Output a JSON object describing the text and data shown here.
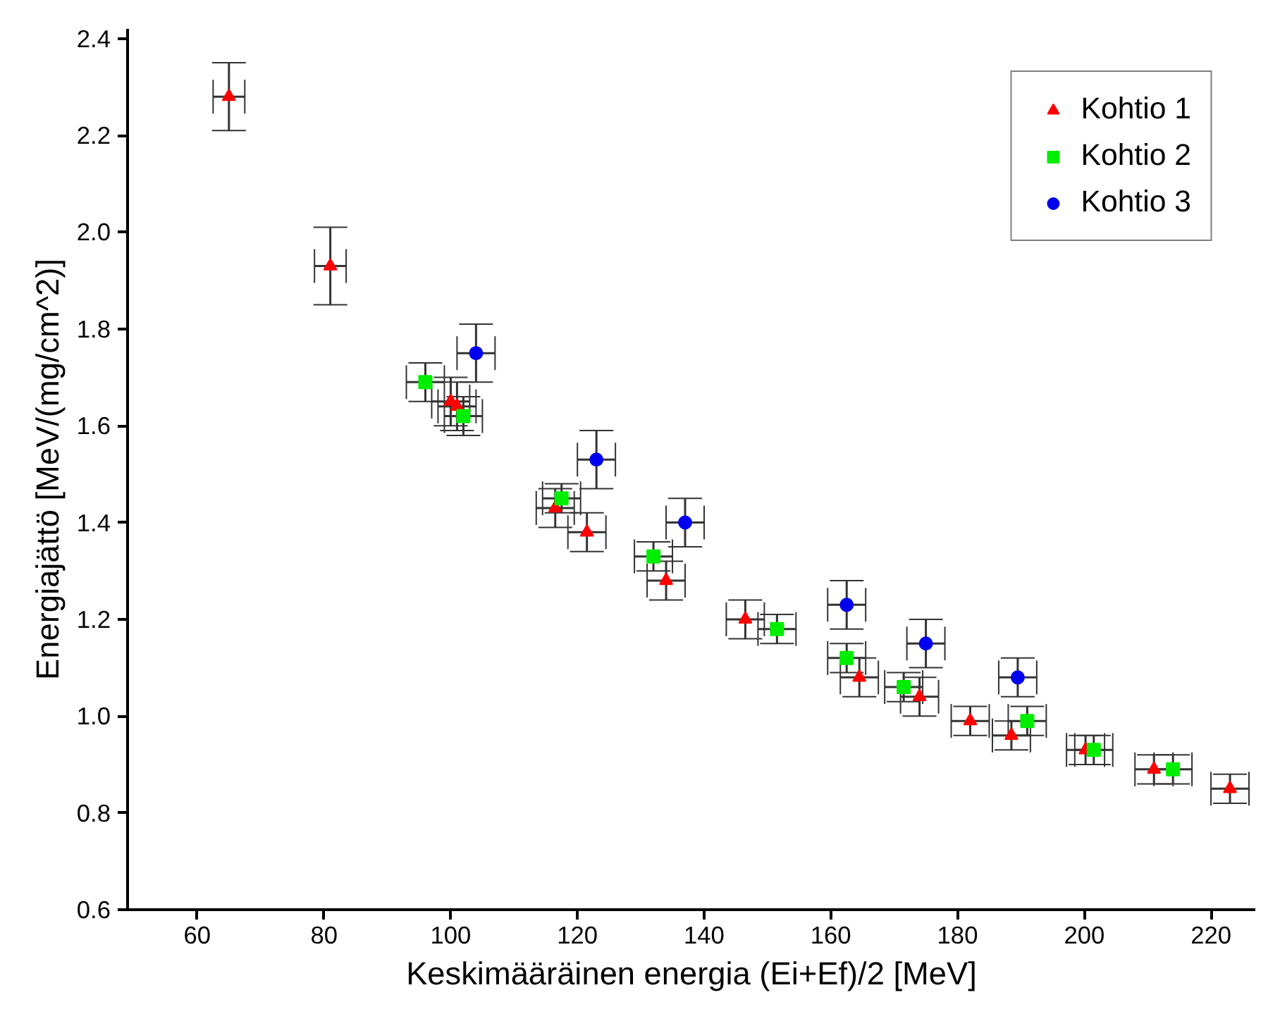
{
  "chart_data": {
    "type": "scatter",
    "xlabel": "Keskimääräinen energia (Ei+Ef)/2 [MeV]",
    "ylabel": "Energiajättö [MeV/(mg/cm^2)]",
    "xlim": [
      49,
      227
    ],
    "ylim": [
      0.6,
      2.42
    ],
    "xticks": [
      60,
      80,
      100,
      120,
      140,
      160,
      180,
      200,
      220
    ],
    "yticks": [
      0.6,
      0.8,
      {
        "value": 1,
        "label": "1.0"
      },
      1.2,
      1.4,
      1.6,
      1.8,
      {
        "value": 2,
        "label": "2.0"
      },
      2.2,
      2.4
    ],
    "grid": false,
    "legend": "top right",
    "series": [
      {
        "name": "Kohtio 1",
        "color": "#ff0000",
        "marker": "triangle",
        "x": [
          65,
          81,
          100,
          101,
          116.5,
          121.5,
          134,
          146.5,
          164.5,
          174,
          182,
          188.5,
          200.2,
          211,
          223
        ],
        "values": [
          2.28,
          1.93,
          1.65,
          1.64,
          1.43,
          1.38,
          1.28,
          1.2,
          1.08,
          1.04,
          0.99,
          0.96,
          0.93,
          0.89,
          0.85
        ],
        "errors": [
          0.07,
          0.08,
          0.05,
          0.05,
          0.04,
          0.04,
          0.04,
          0.04,
          0.04,
          0.04,
          0.03,
          0.03,
          0.03,
          0.03,
          0.03
        ],
        "xerrors": [
          2.5,
          2.5,
          3,
          3,
          3,
          3,
          3,
          3,
          3,
          3,
          3,
          3,
          3,
          3,
          3
        ]
      },
      {
        "name": "Kohtio 2",
        "color": "#00ee00",
        "marker": "square",
        "x": [
          96,
          102,
          117.5,
          132,
          151.5,
          162.5,
          171.5,
          191,
          201.5,
          214
        ],
        "values": [
          1.69,
          1.62,
          1.45,
          1.33,
          1.18,
          1.12,
          1.06,
          0.99,
          0.93,
          0.89
        ],
        "errors": [
          0.04,
          0.04,
          0.03,
          0.03,
          0.03,
          0.03,
          0.03,
          0.03,
          0.03,
          0.03
        ],
        "xerrors": [
          3,
          3,
          3,
          3,
          3,
          3,
          3,
          3,
          3,
          3
        ]
      },
      {
        "name": "Kohtio 3",
        "color": "#0000ee",
        "marker": "circle",
        "x": [
          104,
          123,
          137,
          162.5,
          175,
          189.5
        ],
        "values": [
          1.75,
          1.53,
          1.4,
          1.23,
          1.15,
          1.08
        ],
        "errors": [
          0.06,
          0.06,
          0.05,
          0.05,
          0.05,
          0.04
        ],
        "xerrors": [
          3,
          3,
          3,
          3,
          3,
          3
        ]
      }
    ]
  }
}
